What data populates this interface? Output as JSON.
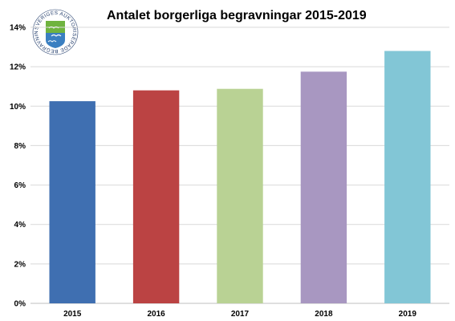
{
  "logo": {
    "text": "SVERIGES AUKTORISERADE BEGRAVNINGSBYRÅER",
    "colors": {
      "green": "#6fb33f",
      "blue": "#3a7fc1",
      "ring": "#1f3a6a"
    }
  },
  "chart_data": {
    "type": "bar",
    "title": "Antalet borgerliga begravningar 2015-2019",
    "categories": [
      "2015",
      "2016",
      "2017",
      "2018",
      "2019"
    ],
    "values": [
      10.25,
      10.8,
      10.88,
      11.75,
      12.8
    ],
    "colors": [
      "#3f6fb1",
      "#bb4343",
      "#b9d294",
      "#a897c1",
      "#82c6d6"
    ],
    "xlabel": "",
    "ylabel": "",
    "ylim": [
      0,
      14
    ],
    "yticks": [
      0,
      2,
      4,
      6,
      8,
      10,
      12,
      14
    ],
    "ytick_labels": [
      "0%",
      "2%",
      "4%",
      "6%",
      "8%",
      "10%",
      "12%",
      "14%"
    ],
    "grid": true,
    "legend": "none"
  }
}
